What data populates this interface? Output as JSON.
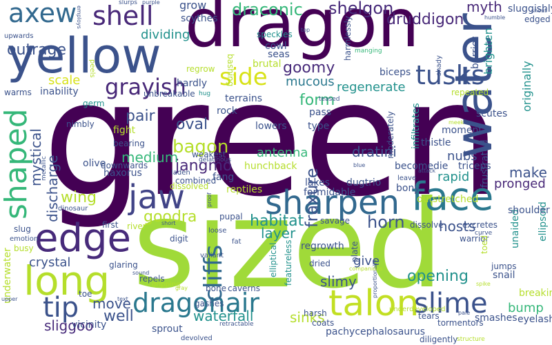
{
  "colors": {
    "deep_purple": "#440154",
    "indigo": "#3b528b",
    "blue": "#31688e",
    "teal": "#21918c",
    "green": "#35b779",
    "lime": "#b5de2b",
    "yellow": "#d8e219"
  },
  "words": [
    {
      "text": "green",
      "color": "#440154"
    },
    {
      "text": "sized",
      "color": "#a0da39"
    },
    {
      "text": "dragon",
      "color": "#440154"
    },
    {
      "text": "yellow",
      "color": "#3b528b"
    },
    {
      "text": "water",
      "color": "#3b528b"
    },
    {
      "text": "long",
      "color": "#b5de2b"
    },
    {
      "text": "face",
      "color": "#2a788e"
    },
    {
      "text": "sharpen",
      "color": "#31688e"
    },
    {
      "text": "edge",
      "color": "#472a7a"
    },
    {
      "text": "jaw",
      "color": "#414487"
    },
    {
      "text": "shaped",
      "color": "#35b779"
    },
    {
      "text": "talon",
      "color": "#c2df23"
    },
    {
      "text": "slime",
      "color": "#3b528b"
    },
    {
      "text": "tip",
      "color": "#3b528b"
    },
    {
      "text": "dragonair",
      "color": "#2a788e"
    },
    {
      "text": "axew",
      "color": "#31688e"
    },
    {
      "text": "shell",
      "color": "#482878"
    },
    {
      "text": "tusks",
      "color": "#3b528b"
    },
    {
      "text": "cliffs",
      "color": "#31688e"
    },
    {
      "text": "side",
      "color": "#d8e219"
    },
    {
      "text": "draconic",
      "color": "#35b779"
    },
    {
      "text": "shelgon",
      "color": "#472a7a"
    },
    {
      "text": "druddigon",
      "color": "#482878"
    },
    {
      "text": "myth",
      "color": "#482878"
    },
    {
      "text": "grayish",
      "color": "#482878"
    },
    {
      "text": "outrage",
      "color": "#3b528b"
    },
    {
      "text": "scale",
      "color": "#d8e219"
    },
    {
      "text": "form",
      "color": "#35b779"
    },
    {
      "text": "goomy",
      "color": "#472a7a"
    },
    {
      "text": "mucous",
      "color": "#2a788e"
    },
    {
      "text": "regenerate",
      "color": "#21918c"
    },
    {
      "text": "fraxure",
      "color": "#3b528b"
    },
    {
      "text": "habitat",
      "color": "#21918c"
    },
    {
      "text": "horn",
      "color": "#3b528b"
    },
    {
      "text": "hosts",
      "color": "#3b528b"
    },
    {
      "text": "opening",
      "color": "#21918c"
    },
    {
      "text": "bagon",
      "color": "#b5de2b"
    },
    {
      "text": "jangmo",
      "color": "#482878"
    },
    {
      "text": "oval",
      "color": "#3b528b"
    },
    {
      "text": "pair",
      "color": "#3b528b"
    },
    {
      "text": "medium",
      "color": "#35b779"
    },
    {
      "text": "mystical",
      "color": "#3b528b"
    },
    {
      "text": "discharge",
      "color": "#3b528b"
    },
    {
      "text": "wing",
      "color": "#b5de2b"
    },
    {
      "text": "goodra",
      "color": "#b5de2b"
    },
    {
      "text": "dratini",
      "color": "#3b528b"
    },
    {
      "text": "antenna",
      "color": "#35b779"
    },
    {
      "text": "nubs",
      "color": "#3b528b"
    },
    {
      "text": "rapid",
      "color": "#21918c"
    },
    {
      "text": "pronged",
      "color": "#482878"
    },
    {
      "text": "make",
      "color": "#3b528b"
    },
    {
      "text": "bump",
      "color": "#35b779"
    },
    {
      "text": "move",
      "color": "#3b528b"
    },
    {
      "text": "well",
      "color": "#3b528b"
    },
    {
      "text": "sliggoo",
      "color": "#472a7a"
    },
    {
      "text": "waterfall",
      "color": "#21918c"
    },
    {
      "text": "crystal",
      "color": "#3b528b"
    },
    {
      "text": "slimy",
      "color": "#3b528b"
    },
    {
      "text": "give",
      "color": "#3b528b"
    },
    {
      "text": "layer",
      "color": "#21918c"
    },
    {
      "text": "sinks",
      "color": "#b5de2b"
    },
    {
      "text": "grow",
      "color": "#3b528b"
    },
    {
      "text": "dividing",
      "color": "#21918c"
    },
    {
      "text": "brighten",
      "color": "#21918c"
    },
    {
      "text": "barrier",
      "color": "#3b528b"
    },
    {
      "text": "originally",
      "color": "#21918c"
    },
    {
      "text": "sluggishly",
      "color": "#3b528b"
    },
    {
      "text": "edged",
      "color": "#3b528b"
    },
    {
      "text": "underwater",
      "color": "#b5de2b"
    },
    {
      "text": "unaided",
      "color": "#21918c"
    },
    {
      "text": "ellipsoid",
      "color": "#21918c"
    },
    {
      "text": "breaking",
      "color": "#b5de2b"
    },
    {
      "text": "eyelash",
      "color": "#3b528b"
    },
    {
      "text": "dugtrio",
      "color": "#3b528b"
    },
    {
      "text": "regrowth",
      "color": "#3b528b"
    },
    {
      "text": "featureless",
      "color": "#21918c"
    },
    {
      "text": "pachycephalosaurus",
      "color": "#3b528b"
    },
    {
      "text": "snail",
      "color": "#3b528b"
    },
    {
      "text": "smashes",
      "color": "#3b528b"
    },
    {
      "text": "vicinity",
      "color": "#3b528b"
    },
    {
      "text": "sprout",
      "color": "#3b528b"
    },
    {
      "text": "terrains",
      "color": "#3b528b"
    },
    {
      "text": "rock",
      "color": "#3b528b"
    },
    {
      "text": "fight",
      "color": "#b5de2b"
    },
    {
      "text": "haxorus",
      "color": "#3b528b"
    },
    {
      "text": "olive",
      "color": "#3b528b"
    },
    {
      "text": "fang",
      "color": "#3b528b"
    },
    {
      "text": "reptiles",
      "color": "#b5de2b"
    },
    {
      "text": "lakes",
      "color": "#3b528b"
    },
    {
      "text": "formidable",
      "color": "#3b528b"
    },
    {
      "text": "bony",
      "color": "#3b528b"
    },
    {
      "text": "outstretched",
      "color": "#b5de2b"
    },
    {
      "text": "shoulder",
      "color": "#3b528b"
    },
    {
      "text": "triceps",
      "color": "#3b528b"
    },
    {
      "text": "frustrated",
      "color": "#3b528b"
    },
    {
      "text": "moment",
      "color": "#3b528b"
    },
    {
      "text": "thistle",
      "color": "#3b528b"
    },
    {
      "text": "becomedie",
      "color": "#3b528b"
    },
    {
      "text": "hunchback",
      "color": "#b5de2b"
    },
    {
      "text": "type",
      "color": "#3b528b"
    },
    {
      "text": "lowers",
      "color": "#3b528b"
    },
    {
      "text": "pass",
      "color": "#3b528b"
    },
    {
      "text": "moderately",
      "color": "#3b528b"
    },
    {
      "text": "infiltrates",
      "color": "#21918c"
    },
    {
      "text": "scutes",
      "color": "#3b528b"
    },
    {
      "text": "repeated",
      "color": "#b5de2b"
    },
    {
      "text": "biceps",
      "color": "#3b528b"
    },
    {
      "text": "harmlessly",
      "color": "#3b528b"
    },
    {
      "text": "seas",
      "color": "#3b528b"
    },
    {
      "text": "brutal",
      "color": "#b5de2b"
    },
    {
      "text": "cowl",
      "color": "#3b528b"
    },
    {
      "text": "speckles",
      "color": "#21918c"
    },
    {
      "text": "bashing",
      "color": "#b5de2b"
    },
    {
      "text": "hardly",
      "color": "#3b528b"
    },
    {
      "text": "regrow",
      "color": "#b5de2b"
    },
    {
      "text": "scythes",
      "color": "#3b528b"
    },
    {
      "text": "unbreakable",
      "color": "#3b528b"
    },
    {
      "text": "warms",
      "color": "#3b528b"
    },
    {
      "text": "inability",
      "color": "#3b528b"
    },
    {
      "text": "germ",
      "color": "#21918c"
    },
    {
      "text": "nimbly",
      "color": "#3b528b"
    },
    {
      "text": "bearing",
      "color": "#3b528b"
    },
    {
      "text": "downwards",
      "color": "#3b528b"
    },
    {
      "text": "weakest",
      "color": "#3b528b"
    },
    {
      "text": "combined",
      "color": "#3b528b"
    },
    {
      "text": "dissolved",
      "color": "#b5de2b"
    },
    {
      "text": "slug",
      "color": "#3b528b"
    },
    {
      "text": "first",
      "color": "#3b528b"
    },
    {
      "text": "river",
      "color": "#b5de2b"
    },
    {
      "text": "digit",
      "color": "#3b528b"
    },
    {
      "text": "pupal",
      "color": "#3b528b"
    },
    {
      "text": "savage",
      "color": "#3b528b"
    },
    {
      "text": "dissolve",
      "color": "#3b528b"
    },
    {
      "text": "excretes",
      "color": "#3b528b"
    },
    {
      "text": "warrior",
      "color": "#3b528b"
    },
    {
      "text": "toed",
      "color": "#b5de2b"
    },
    {
      "text": "jumps",
      "color": "#3b528b"
    },
    {
      "text": "busy",
      "color": "#b5de2b"
    },
    {
      "text": "glaring",
      "color": "#3b528b"
    },
    {
      "text": "repels",
      "color": "#3b528b"
    },
    {
      "text": "dripping",
      "color": "#b5de2b"
    },
    {
      "text": "bone",
      "color": "#3b528b"
    },
    {
      "text": "caverns",
      "color": "#3b528b"
    },
    {
      "text": "elliptical",
      "color": "#21918c"
    },
    {
      "text": "dried",
      "color": "#3b528b"
    },
    {
      "text": "plate",
      "color": "#3b528b"
    },
    {
      "text": "gashes",
      "color": "#3b528b"
    },
    {
      "text": "harsh",
      "color": "#3b528b"
    },
    {
      "text": "coats",
      "color": "#3b528b"
    },
    {
      "text": "underdeveloped",
      "color": "#b5de2b"
    },
    {
      "text": "tears",
      "color": "#3b528b"
    },
    {
      "text": "tormentors",
      "color": "#3b528b"
    },
    {
      "text": "diligently",
      "color": "#3b528b"
    },
    {
      "text": "devolved",
      "color": "#3b528b"
    },
    {
      "text": "toe",
      "color": "#3b528b"
    },
    {
      "text": "loose",
      "color": "#3b528b"
    },
    {
      "text": "valiant",
      "color": "#3b528b"
    },
    {
      "text": "fat",
      "color": "#3b528b"
    },
    {
      "text": "emotion",
      "color": "#3b528b"
    },
    {
      "text": "metallic",
      "color": "#3b528b"
    },
    {
      "text": "dinosaur",
      "color": "#3b528b"
    },
    {
      "text": "laden",
      "color": "#3b528b"
    },
    {
      "text": "gelatinous",
      "color": "#3b528b"
    },
    {
      "text": "hug",
      "color": "#21918c"
    },
    {
      "text": "peels",
      "color": "#b5de2b"
    },
    {
      "text": "upwards",
      "color": "#3b528b"
    },
    {
      "text": "employs",
      "color": "#3b528b"
    },
    {
      "text": "slurps",
      "color": "#3b528b"
    },
    {
      "text": "purple",
      "color": "#3b528b"
    },
    {
      "text": "humble",
      "color": "#3b528b"
    },
    {
      "text": "snout",
      "color": "#3b528b"
    },
    {
      "text": "shady",
      "color": "#3b528b"
    },
    {
      "text": "leave",
      "color": "#3b528b"
    },
    {
      "text": "manging",
      "color": "#35b779"
    },
    {
      "text": "top",
      "color": "#3b528b"
    },
    {
      "text": "meek",
      "color": "#b5de2b"
    },
    {
      "text": "attack",
      "color": "#3b528b"
    },
    {
      "text": "curve",
      "color": "#3b528b"
    },
    {
      "text": "spike",
      "color": "#b5de2b"
    },
    {
      "text": "structure",
      "color": "#b5de2b"
    },
    {
      "text": "proportionally",
      "color": "#3b528b"
    },
    {
      "text": "companions",
      "color": "#b5de2b"
    },
    {
      "text": "teased",
      "color": "#3b528b"
    },
    {
      "text": "short",
      "color": "#3b528b"
    },
    {
      "text": "proof",
      "color": "#3b528b"
    },
    {
      "text": "blue",
      "color": "#3b528b"
    },
    {
      "text": "sound",
      "color": "#3b528b"
    },
    {
      "text": "gray",
      "color": "#b5de2b"
    },
    {
      "text": "retractable",
      "color": "#3b528b"
    },
    {
      "text": "pale",
      "color": "#3b528b"
    },
    {
      "text": "upper",
      "color": "#3b528b"
    },
    {
      "text": "text",
      "color": "#3b528b"
    }
  ]
}
